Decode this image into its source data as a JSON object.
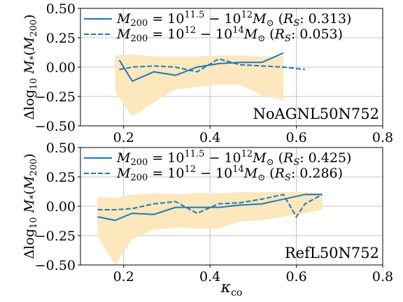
{
  "figure": {
    "xlabel": "κco",
    "ylabel": "Δlog10 M*(M200)"
  },
  "chart_data": [
    {
      "type": "line",
      "panel_label": "NoAGNL50N752",
      "xlim": [
        0.1,
        0.8
      ],
      "ylim": [
        -0.5,
        0.5
      ],
      "x_ticks": [
        "0.2",
        "0.4",
        "0.6",
        "0.8"
      ],
      "y_ticks": [
        "-0.50",
        "-0.25",
        "0.00",
        "0.25",
        "0.50"
      ],
      "grid": true,
      "legend_position": "top-left",
      "band": {
        "color": "#fde7bd",
        "x": [
          0.18,
          0.22,
          0.27,
          0.32,
          0.37,
          0.42,
          0.47,
          0.52,
          0.57
        ],
        "upper": [
          0.1,
          0.11,
          0.09,
          0.09,
          0.09,
          0.1,
          0.1,
          0.09,
          0.09
        ],
        "lower": [
          -0.21,
          -0.42,
          -0.3,
          -0.19,
          -0.17,
          -0.15,
          -0.15,
          -0.24,
          -0.28
        ]
      },
      "series": [
        {
          "name": "M200 = 10^11.5 – 10^12 M⊙ (RS: 0.313)",
          "style": "solid",
          "color": "#1f77b4",
          "x": [
            0.19,
            0.22,
            0.27,
            0.32,
            0.37,
            0.42,
            0.47,
            0.52,
            0.57
          ],
          "y": [
            0.06,
            -0.12,
            -0.04,
            -0.07,
            0.0,
            0.03,
            0.04,
            0.04,
            0.12
          ]
        },
        {
          "name": "M200 = 10^12 – 10^14 M⊙ (RS: 0.053)",
          "style": "dashed",
          "color": "#1f77b4",
          "x": [
            0.19,
            0.22,
            0.27,
            0.32,
            0.37,
            0.42,
            0.47,
            0.52,
            0.57,
            0.62
          ],
          "y": [
            -0.02,
            0.0,
            0.01,
            0.0,
            -0.04,
            0.07,
            0.02,
            0.01,
            0.0,
            -0.02
          ]
        }
      ]
    },
    {
      "type": "line",
      "panel_label": "RefL50N752",
      "xlim": [
        0.1,
        0.8
      ],
      "ylim": [
        -0.5,
        0.5
      ],
      "x_ticks": [
        "0.2",
        "0.4",
        "0.6",
        "0.8"
      ],
      "y_ticks": [
        "-0.50",
        "-0.25",
        "0.00",
        "0.25",
        "0.50"
      ],
      "grid": true,
      "legend_position": "top-left",
      "band": {
        "color": "#fde7bd",
        "x": [
          0.14,
          0.18,
          0.22,
          0.27,
          0.32,
          0.37,
          0.42,
          0.47,
          0.52,
          0.57,
          0.62,
          0.66
        ],
        "upper": [
          0.08,
          0.07,
          0.1,
          0.11,
          0.1,
          0.11,
          0.11,
          0.12,
          0.12,
          0.12,
          0.12,
          0.11
        ],
        "lower": [
          -0.26,
          -0.5,
          -0.28,
          -0.2,
          -0.18,
          -0.19,
          -0.19,
          -0.13,
          -0.12,
          -0.09,
          -0.06,
          -0.03
        ]
      },
      "series": [
        {
          "name": "M200 = 10^11.5 – 10^12 M⊙ (RS: 0.425)",
          "style": "solid",
          "color": "#1f77b4",
          "x": [
            0.14,
            0.18,
            0.22,
            0.27,
            0.32,
            0.37,
            0.42,
            0.47,
            0.52,
            0.57,
            0.62,
            0.66
          ],
          "y": [
            -0.09,
            -0.12,
            -0.06,
            -0.07,
            -0.01,
            -0.01,
            -0.01,
            0.01,
            0.02,
            0.06,
            0.1,
            0.1
          ]
        },
        {
          "name": "M200 = 10^12 – 10^14 M⊙ (RS: 0.286)",
          "style": "dashed",
          "color": "#1f77b4",
          "x": [
            0.14,
            0.18,
            0.22,
            0.27,
            0.32,
            0.37,
            0.42,
            0.47,
            0.52,
            0.57,
            0.6,
            0.62,
            0.66
          ],
          "y": [
            -0.03,
            -0.03,
            -0.02,
            0.02,
            0.04,
            -0.06,
            0.02,
            0.03,
            0.06,
            0.1,
            -0.09,
            0.02,
            0.1
          ]
        }
      ]
    }
  ]
}
